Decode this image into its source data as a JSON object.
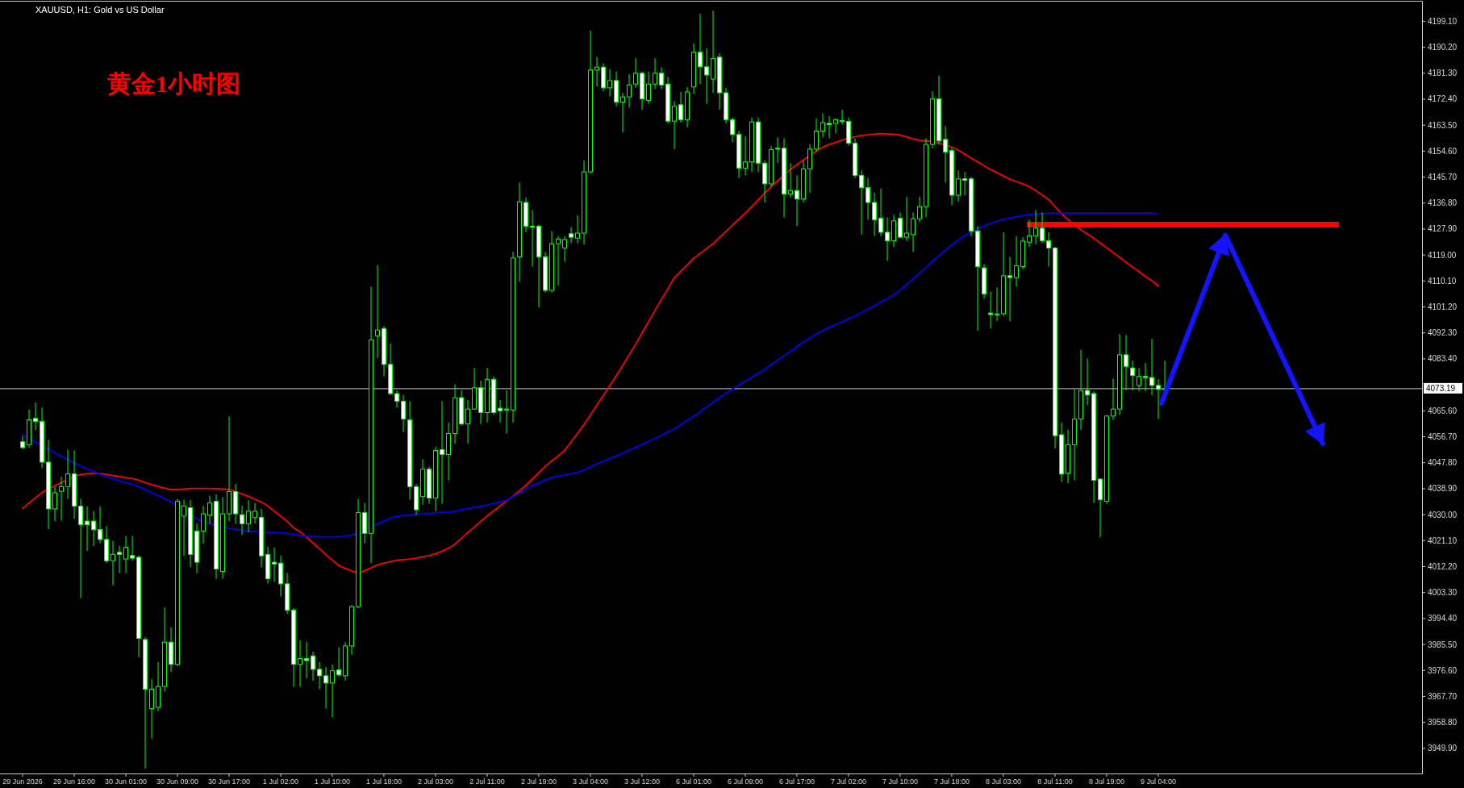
{
  "chart_data": {
    "type": "candlestick",
    "title": "黄金1小时图",
    "subtitle": "XAUUSD, H1:  Gold vs US Dollar",
    "categories": [
      "29 Jun 2026",
      null,
      null,
      null,
      null,
      null,
      null,
      null,
      "29 Jun 16:00",
      null,
      null,
      null,
      null,
      null,
      null,
      null,
      "30 Jun 01:00",
      null,
      null,
      null,
      null,
      null,
      null,
      null,
      "30 Jun 09:00",
      null,
      null,
      null,
      null,
      null,
      null,
      null,
      "30 Jun 17:00",
      null,
      null,
      null,
      null,
      null,
      null,
      null,
      "1 Jul 02:00",
      null,
      null,
      null,
      null,
      null,
      null,
      null,
      "1 Jul 10:00",
      null,
      null,
      null,
      null,
      null,
      null,
      null,
      "1 Jul 18:00",
      null,
      null,
      null,
      null,
      null,
      null,
      null,
      "2 Jul 03:00",
      null,
      null,
      null,
      null,
      null,
      null,
      null,
      "2 Jul 11:00",
      null,
      null,
      null,
      null,
      null,
      null,
      null,
      "2 Jul 19:00",
      null,
      null,
      null,
      null,
      null,
      null,
      null,
      "3 Jul 04:00",
      null,
      null,
      null,
      null,
      null,
      null,
      null,
      "3 Jul 12:00",
      null,
      null,
      null,
      null,
      null,
      null,
      null,
      "6 Jul 01:00",
      null,
      null,
      null,
      null,
      null,
      null,
      null,
      "6 Jul 09:00",
      null,
      null,
      null,
      null,
      null,
      null,
      null,
      "6 Jul 17:00",
      null,
      null,
      null,
      null,
      null,
      null,
      null,
      "7 Jul 02:00",
      null,
      null,
      null,
      null,
      null,
      null,
      null,
      "7 Jul 10:00",
      null,
      null,
      null,
      null,
      null,
      null,
      null,
      "7 Jul 18:00",
      null,
      null,
      null,
      null,
      null,
      null,
      null,
      "8 Jul 03:00",
      null,
      null,
      null,
      null,
      null,
      null,
      null,
      "8 Jul 11:00",
      null,
      null,
      null,
      null,
      null,
      null,
      null,
      "8 Jul 19:00",
      null,
      null,
      null,
      null,
      null,
      null,
      null,
      "9 Jul 04:00",
      null
    ],
    "ohlc": [
      [
        4055,
        4057,
        4052.5,
        4053
      ],
      [
        4054,
        4066,
        4053,
        4062.5
      ],
      [
        4063,
        4068.5,
        4059,
        4062
      ],
      [
        4062,
        4066.7,
        4046,
        4048
      ],
      [
        4048,
        4055.7,
        4025,
        4032
      ],
      [
        4032,
        4039.6,
        4027.8,
        4037.5
      ],
      [
        4038,
        4043,
        4028,
        4039.6
      ],
      [
        4039.6,
        4052.3,
        4035.4,
        4044
      ],
      [
        4044,
        4052,
        4028.6,
        4032.9
      ],
      [
        4032.9,
        4035.4,
        4001.5,
        4026.6
      ],
      [
        4027.8,
        4032.9,
        4017.6,
        4026.6
      ],
      [
        4027.8,
        4031.2,
        4019.3,
        4024.9
      ],
      [
        4024.9,
        4032.9,
        4020.2,
        4021.5
      ],
      [
        4021.5,
        4026.1,
        4013.4,
        4014.2
      ],
      [
        4014.2,
        4021,
        4005.8,
        4016.4
      ],
      [
        4017.1,
        4019.3,
        4010,
        4016.4
      ],
      [
        4014.8,
        4022.7,
        4010,
        4018.8
      ],
      [
        4016,
        4022.7,
        4014.3,
        4015.1
      ],
      [
        4015.4,
        4016,
        3981.2,
        3987.6
      ],
      [
        3987.2,
        3988,
        3943,
        3970.2
      ],
      [
        3963.5,
        3973.6,
        3953.3,
        3970.2
      ],
      [
        3964,
        3979.5,
        3962.6,
        3971.1
      ],
      [
        3971.1,
        3998.2,
        3969.4,
        3986.3
      ],
      [
        3986.3,
        3991.4,
        3976.1,
        3978.7
      ],
      [
        3978.7,
        4035.4,
        3978,
        4034.6
      ],
      [
        4029.5,
        4035.1,
        4015.9,
        4033
      ],
      [
        4032.4,
        4035,
        4012,
        4016.4
      ],
      [
        4024.4,
        4027,
        4010,
        4013.7
      ],
      [
        4024.4,
        4033,
        4020,
        4030.3
      ],
      [
        4029.8,
        4036.5,
        4027,
        4034
      ],
      [
        4034.6,
        4037,
        4008,
        4011.4
      ],
      [
        4010.5,
        4036,
        4008,
        4030.3
      ],
      [
        4030.3,
        4063.7,
        4027.8,
        4037.9
      ],
      [
        4037.9,
        4040.5,
        4027,
        4030.3
      ],
      [
        4030,
        4033,
        4023,
        4026.9
      ],
      [
        4026.9,
        4035,
        4024,
        4031.2
      ],
      [
        4029,
        4034,
        4027,
        4031.2
      ],
      [
        4029.1,
        4032,
        4012,
        4015.9
      ],
      [
        4016.4,
        4019,
        4006.4,
        4008
      ],
      [
        4013.7,
        4018.8,
        4007,
        4013.1
      ],
      [
        4013.4,
        4016,
        4002,
        4006.3
      ],
      [
        4006.3,
        4010,
        3996,
        3997.3
      ],
      [
        3997.3,
        3998,
        3971,
        3978.7
      ],
      [
        3978.7,
        3987,
        3971,
        3980.7
      ],
      [
        3980.7,
        3986.3,
        3974,
        3980
      ],
      [
        3981.6,
        3983,
        3973.1,
        3977
      ],
      [
        3977,
        3979.5,
        3970.2,
        3974.8
      ],
      [
        3974.8,
        3977.8,
        3963.5,
        3972.3
      ],
      [
        3972.3,
        3978.7,
        3960.6,
        3976.5
      ],
      [
        3976.8,
        3984.6,
        3974.5,
        3975.1
      ],
      [
        3974.8,
        3986.3,
        3973.1,
        3985
      ],
      [
        3985,
        3999,
        3982,
        3998.5
      ],
      [
        3998.5,
        4035.4,
        3998,
        4030.7
      ],
      [
        4030.7,
        4034,
        4020.2,
        4023.6
      ],
      [
        4023.6,
        4108.2,
        4013.4,
        4089.9
      ],
      [
        4091.3,
        4115.5,
        4083.7,
        4093.3
      ],
      [
        4093.8,
        4094.6,
        4077.4,
        4081.5
      ],
      [
        4081.5,
        4088.7,
        4071,
        4071.5
      ],
      [
        4071.5,
        4072.6,
        4066.7,
        4068.9
      ],
      [
        4068.9,
        4071,
        4058.3,
        4062.8
      ],
      [
        4062.5,
        4068.9,
        4035.1,
        4039.6
      ],
      [
        4039.6,
        4040.5,
        4030,
        4031.7
      ],
      [
        4036.2,
        4049,
        4033.4,
        4045.6
      ],
      [
        4045.6,
        4046.4,
        4033.7,
        4035.7
      ],
      [
        4035.7,
        4053.2,
        4031.2,
        4052
      ],
      [
        4052.3,
        4068.9,
        4033.7,
        4050.6
      ],
      [
        4050.6,
        4061.6,
        4041.8,
        4057.8
      ],
      [
        4057.8,
        4074.7,
        4054.4,
        4070.1
      ],
      [
        4070.1,
        4072.7,
        4060.5,
        4061.1
      ],
      [
        4061.1,
        4069.3,
        4054.4,
        4066.2
      ],
      [
        4066.2,
        4080.3,
        4065.9,
        4073.5
      ],
      [
        4073.5,
        4076,
        4061.1,
        4065
      ],
      [
        4065,
        4080.3,
        4061.6,
        4076.4
      ],
      [
        4076.4,
        4077.4,
        4064.2,
        4065
      ],
      [
        4066.5,
        4069.3,
        4061.6,
        4065.6
      ],
      [
        4066.2,
        4072.7,
        4057.8,
        4065.9
      ],
      [
        4065.9,
        4120.1,
        4061.6,
        4118
      ],
      [
        4118.4,
        4143.8,
        4109.9,
        4137.3
      ],
      [
        4137,
        4138.7,
        4126.8,
        4128.9
      ],
      [
        4128.9,
        4134.4,
        4115,
        4128.5
      ],
      [
        4128.9,
        4129.4,
        4101.1,
        4118.4
      ],
      [
        4118.4,
        4120.1,
        4106.2,
        4106.9
      ],
      [
        4106.9,
        4127.2,
        4106.2,
        4122.9
      ],
      [
        4122.9,
        4125.5,
        4108.5,
        4124.5
      ],
      [
        4121.4,
        4125.5,
        4116.7,
        4124.3
      ],
      [
        4126.3,
        4128.5,
        4123.1,
        4125.1
      ],
      [
        4124.8,
        4132.6,
        4123.1,
        4126.5
      ],
      [
        4126.5,
        4151.4,
        4122.6,
        4147.5
      ],
      [
        4147.5,
        4195.9,
        4146.8,
        4182.4
      ],
      [
        4182.4,
        4186.9,
        4176.8,
        4183.4
      ],
      [
        4183.4,
        4184.7,
        4175.1,
        4176.3
      ],
      [
        4176.3,
        4182.7,
        4173.4,
        4178.8
      ],
      [
        4178.8,
        4181.9,
        4170,
        4171.4
      ],
      [
        4171.4,
        4174.6,
        4161,
        4173.2
      ],
      [
        4173.2,
        4181,
        4169.5,
        4177.3
      ],
      [
        4177.6,
        4186.4,
        4176.3,
        4181.3
      ],
      [
        4181.3,
        4181.9,
        4168.8,
        4172.5
      ],
      [
        4172,
        4181.9,
        4170.8,
        4177.6
      ],
      [
        4177.6,
        4186.4,
        4175.9,
        4181.3
      ],
      [
        4181.3,
        4183.4,
        4175.9,
        4177.3
      ],
      [
        4177.6,
        4180.1,
        4164.1,
        4164.9
      ],
      [
        4164.9,
        4171.7,
        4155.3,
        4170
      ],
      [
        4170.5,
        4174.9,
        4164.4,
        4165.4
      ],
      [
        4165.4,
        4176.6,
        4162.7,
        4174.9
      ],
      [
        4176.6,
        4191.5,
        4174.2,
        4188.5
      ],
      [
        4188.5,
        4201.7,
        4177.6,
        4183.5
      ],
      [
        4183.5,
        4189.8,
        4170.8,
        4180.7
      ],
      [
        4179.3,
        4202.7,
        4174.6,
        4186.4
      ],
      [
        4186.8,
        4188.1,
        4168.8,
        4174.6
      ],
      [
        4174.6,
        4176.3,
        4164.1,
        4165.4
      ],
      [
        4165.4,
        4166.1,
        4157.6,
        4160.3
      ],
      [
        4160.3,
        4161.5,
        4145.4,
        4148.8
      ],
      [
        4148.8,
        4159.8,
        4146.3,
        4150.9
      ],
      [
        4150.9,
        4166.1,
        4147.5,
        4164.6
      ],
      [
        4164.6,
        4166.1,
        4147.5,
        4150.5
      ],
      [
        4150.5,
        4151.4,
        4137,
        4143.4
      ],
      [
        4143.4,
        4156.3,
        4142.4,
        4155.1
      ],
      [
        4155.6,
        4159.3,
        4150.5,
        4155.3
      ],
      [
        4155.6,
        4159,
        4131.9,
        4139.9
      ],
      [
        4139.9,
        4150.5,
        4138.7,
        4141.1
      ],
      [
        4141.1,
        4146.3,
        4128.9,
        4138.2
      ],
      [
        4138.2,
        4151.4,
        4137,
        4148.5
      ],
      [
        4148.5,
        4157,
        4140.4,
        4155.3
      ],
      [
        4155.3,
        4165.8,
        4154.3,
        4161.5
      ],
      [
        4161.5,
        4167.5,
        4159.3,
        4164.4
      ],
      [
        4164.1,
        4166.6,
        4159,
        4163.7
      ],
      [
        4164.1,
        4165.8,
        4160.7,
        4165.4
      ],
      [
        4165.1,
        4168.8,
        4163.7,
        4164.8
      ],
      [
        4164.8,
        4166.1,
        4156.5,
        4157.3
      ],
      [
        4157.3,
        4159,
        4145.4,
        4146.3
      ],
      [
        4146.3,
        4148,
        4126,
        4142.1
      ],
      [
        4142.1,
        4145.4,
        4131.1,
        4137
      ],
      [
        4137,
        4140.4,
        4125.5,
        4131.1
      ],
      [
        4131.6,
        4141.7,
        4125.5,
        4126.8
      ],
      [
        4126.8,
        4131.9,
        4117,
        4123.9
      ],
      [
        4123.9,
        4132.8,
        4121.7,
        4130.7
      ],
      [
        4131.6,
        4133.6,
        4124.8,
        4125.1
      ],
      [
        4125.1,
        4139,
        4123.8,
        4126.5
      ],
      [
        4126,
        4133.6,
        4120.1,
        4131.4
      ],
      [
        4131.4,
        4139,
        4130.2,
        4135.6
      ],
      [
        4135.6,
        4159,
        4131.9,
        4156.9
      ],
      [
        4156.9,
        4175.1,
        4155.6,
        4172.5
      ],
      [
        4172.5,
        4180.5,
        4156.8,
        4158.1
      ],
      [
        4158.6,
        4163.2,
        4143.8,
        4154.3
      ],
      [
        4154.8,
        4155.6,
        4136.1,
        4139.5
      ],
      [
        4139.5,
        4148,
        4137.3,
        4145.1
      ],
      [
        4145.1,
        4147.5,
        4139.5,
        4144.6
      ],
      [
        4145.1,
        4145.8,
        4125.5,
        4127.2
      ],
      [
        4127.2,
        4128.9,
        4093,
        4115
      ],
      [
        4114.6,
        4115.8,
        4104,
        4105.7
      ],
      [
        4099.1,
        4106.5,
        4093.8,
        4098.6
      ],
      [
        4098.8,
        4107.9,
        4096.4,
        4098.7
      ],
      [
        4098.9,
        4126.8,
        4098,
        4111.9
      ],
      [
        4111.9,
        4118.4,
        4096.4,
        4111.3
      ],
      [
        4111.3,
        4125.5,
        4108.2,
        4115.3
      ],
      [
        4115,
        4125.1,
        4114.1,
        4123.8
      ],
      [
        4123.4,
        4131.1,
        4121.7,
        4125.6
      ],
      [
        4125.6,
        4134.4,
        4122.6,
        4128.2
      ],
      [
        4128.2,
        4133.6,
        4123.1,
        4123.9
      ],
      [
        4123.9,
        4126.8,
        4115,
        4121.4
      ],
      [
        4121.4,
        4121.8,
        4052.7,
        4057.1
      ],
      [
        4057.4,
        4061.6,
        4041.3,
        4043.9
      ],
      [
        4044.2,
        4059.1,
        4040.8,
        4054
      ],
      [
        4054,
        4073,
        4041.8,
        4062.8
      ],
      [
        4062.8,
        4086.5,
        4059.1,
        4072.6
      ],
      [
        4072.6,
        4083.5,
        4067.6,
        4071
      ],
      [
        4071.5,
        4072.3,
        4034,
        4041.8
      ],
      [
        4042.2,
        4042.5,
        4022.2,
        4035.1
      ],
      [
        4034.6,
        4064.2,
        4033.7,
        4063.8
      ],
      [
        4063.8,
        4076.7,
        4062.5,
        4066.2
      ],
      [
        4066.2,
        4091.9,
        4064.2,
        4084.8
      ],
      [
        4084.8,
        4091.6,
        4072.6,
        4080.8
      ],
      [
        4080.3,
        4082.8,
        4072.6,
        4077.7
      ],
      [
        4074.3,
        4080.3,
        4072.3,
        4077.4
      ],
      [
        4077.4,
        4082,
        4072.3,
        4077
      ],
      [
        4077,
        4090.3,
        4071,
        4074.3
      ],
      [
        4074.3,
        4076.4,
        4062.8,
        4073
      ],
      [
        4073,
        4082.8,
        4072.7,
        4073.19
      ]
    ],
    "series": [
      {
        "type": "line",
        "color": "#ff0000",
        "values": [
          4032.2,
          4034,
          4035.8,
          4037.6,
          4038.8,
          4039.9,
          4041,
          4042,
          4043,
          4043.8,
          4044,
          4044.1,
          4044.1,
          4043.8,
          4043.4,
          4043.1,
          4042.7,
          4042.4,
          4041.8,
          4041,
          4040.3,
          4039.7,
          4039.1,
          4038.6,
          4038.6,
          4038.8,
          4039,
          4039,
          4039,
          4039,
          4038.9,
          4038.8,
          4038.7,
          4037.9,
          4037.1,
          4036.3,
          4035.3,
          4034.3,
          4033,
          4031.2,
          4029.5,
          4027.7,
          4025.5,
          4024.2,
          4022.3,
          4020.3,
          4018.3,
          4016.3,
          4014.4,
          4012.6,
          4011.6,
          4010.7,
          4009.9,
          4010.8,
          4011.8,
          4012.8,
          4013.4,
          4013.9,
          4014.4,
          4014.6,
          4014.8,
          4015.1,
          4015.6,
          4016,
          4016.6,
          4017.5,
          4018.5,
          4019.9,
          4021.9,
          4023.9,
          4025.8,
          4027.7,
          4029.6,
          4031.3,
          4033,
          4034.7,
          4036.4,
          4038.2,
          4040,
          4042.2,
          4044.4,
          4046.6,
          4048.4,
          4050.1,
          4052.1,
          4055,
          4057.9,
          4060.9,
          4064.2,
          4067.6,
          4070.9,
          4074.2,
          4077.6,
          4081.1,
          4084.8,
          4088.4,
          4092.3,
          4096.1,
          4100,
          4103.8,
          4107.4,
          4111.2,
          4113.4,
          4115.6,
          4117.9,
          4119.5,
          4121.2,
          4122.9,
          4125,
          4127.1,
          4129.2,
          4131.3,
          4133.4,
          4135.6,
          4137.9,
          4140.2,
          4142.4,
          4144.4,
          4146.4,
          4148.3,
          4150,
          4151.6,
          4153.1,
          4154.6,
          4156,
          4156.9,
          4157.6,
          4158.4,
          4159,
          4159.5,
          4160,
          4160.2,
          4160.4,
          4160.6,
          4160.5,
          4160.4,
          4160.1,
          4159.5,
          4158.8,
          4158.3,
          4158.1,
          4157.9,
          4157.4,
          4156.7,
          4156,
          4154.9,
          4153.6,
          4152.2,
          4151,
          4149.6,
          4148.3,
          4147.2,
          4146.1,
          4145,
          4144.2,
          4143.4,
          4142.5,
          4141.1,
          4139.6,
          4138,
          4135.6,
          4133.2,
          4131.1,
          4129.4,
          4127.7,
          4126.2,
          4124.7,
          4123.1,
          4121.5,
          4119.9,
          4118.3,
          4116.5,
          4114.9,
          4113.3,
          4111.6,
          4110.2,
          4108.4,
          null
        ]
      },
      {
        "type": "line",
        "color": "#0000ff",
        "values": [
          4057.5,
          4056.1,
          4054.9,
          4053.7,
          4052.5,
          4051.2,
          4050,
          4048.9,
          4047.8,
          4046.7,
          4045.7,
          4044.8,
          4043.9,
          4043.1,
          4042.4,
          4041.6,
          4041,
          4040.4,
          4039.6,
          4038.6,
          4037.5,
          4036.6,
          4035.5,
          4034.4,
          4033,
          4031.6,
          4030.1,
          4028.6,
          4027.5,
          4026.9,
          4026.4,
          4025.9,
          4025.3,
          4025,
          4024.6,
          4024.3,
          4024.2,
          4024.1,
          4024,
          4023.9,
          4023.8,
          4023.6,
          4023.3,
          4022.9,
          4022.6,
          4022.5,
          4022.4,
          4022.4,
          4022.4,
          4022.4,
          4022.7,
          4023.1,
          4023.5,
          4024.6,
          4025.7,
          4026.8,
          4027.8,
          4028.8,
          4029.4,
          4029.7,
          4029.9,
          4030.1,
          4030.3,
          4030.5,
          4030.7,
          4030.8,
          4030.9,
          4031.2,
          4031.7,
          4032.1,
          4032.5,
          4032.8,
          4033.3,
          4033.8,
          4034.4,
          4034.9,
          4036.2,
          4037.5,
          4038.8,
          4039.9,
          4040.9,
          4041.9,
          4042.7,
          4043.2,
          4043.6,
          4044.1,
          4044.5,
          4045.3,
          4046.4,
          4047.4,
          4048.3,
          4049.2,
          4050.1,
          4051.1,
          4052.1,
          4053.1,
          4054.1,
          4055.2,
          4056.1,
          4057.2,
          4058.4,
          4059.4,
          4060.9,
          4062.3,
          4063.7,
          4065.3,
          4066.9,
          4068.5,
          4070.1,
          4071.6,
          4073.1,
          4074.4,
          4075.8,
          4077.1,
          4078.5,
          4079.8,
          4081.4,
          4083,
          4084.5,
          4086.1,
          4087.6,
          4089.1,
          4090.6,
          4092,
          4093.1,
          4094.2,
          4095.2,
          4096.1,
          4097.1,
          4098.1,
          4099.2,
          4100.4,
          4101.6,
          4102.9,
          4104.1,
          4105.3,
          4107,
          4108.9,
          4110.8,
          4112.8,
          4114.8,
          4116.9,
          4118.7,
          4120.6,
          4122.5,
          4124,
          4125.6,
          4127,
          4128,
          4129,
          4129.9,
          4130.6,
          4131.2,
          4131.7,
          4132.1,
          4132.5,
          4132.8,
          4133,
          4133.2,
          4133.4,
          4133.4,
          4133.4,
          4133.4,
          4133.4,
          4133.4,
          4133.4,
          4133.4,
          4133.4,
          4133.4,
          4133.4,
          4133.4,
          4133.4,
          4133.4,
          4133.4,
          4133.4,
          4133.4,
          4133,
          null
        ]
      }
    ],
    "ylim": [
      3941.3,
      4206.4
    ],
    "yticks": [
      {
        "value": 4199.1,
        "label": "4199.10"
      },
      {
        "value": 4190.2,
        "label": "4190.20"
      },
      {
        "value": 4181.3,
        "label": "4181.30"
      },
      {
        "value": 4172.4,
        "label": "4172.40"
      },
      {
        "value": 4163.5,
        "label": "4163.50"
      },
      {
        "value": 4154.6,
        "label": "4154.60"
      },
      {
        "value": 4145.7,
        "label": "4145.70"
      },
      {
        "value": 4136.8,
        "label": "4136.80"
      },
      {
        "value": 4127.9,
        "label": "4127.90"
      },
      {
        "value": 4119.0,
        "label": "4119.00"
      },
      {
        "value": 4110.1,
        "label": "4110.10"
      },
      {
        "value": 4101.2,
        "label": "4101.20"
      },
      {
        "value": 4092.3,
        "label": "4092.30"
      },
      {
        "value": 4083.4,
        "label": "4083.40"
      },
      {
        "value": 4065.6,
        "label": "4065.60"
      },
      {
        "value": 4056.7,
        "label": "4056.70"
      },
      {
        "value": 4047.8,
        "label": "4047.80"
      },
      {
        "value": 4038.9,
        "label": "4038.90"
      },
      {
        "value": 4030.0,
        "label": "4030.00"
      },
      {
        "value": 4021.1,
        "label": "4021.10"
      },
      {
        "value": 4012.2,
        "label": "4012.20"
      },
      {
        "value": 4003.3,
        "label": "4003.30"
      },
      {
        "value": 3994.4,
        "label": "3994.40"
      },
      {
        "value": 3985.5,
        "label": "3985.50"
      },
      {
        "value": 3976.6,
        "label": "3976.60"
      },
      {
        "value": 3967.7,
        "label": "3967.70"
      },
      {
        "value": 3958.8,
        "label": "3958.80"
      },
      {
        "value": 3949.9,
        "label": "3949.90"
      }
    ],
    "ref_lines": [
      {
        "axis": "y",
        "value": 4129.4,
        "color": "#ff0000"
      },
      {
        "axis": "y",
        "value": 4073.19,
        "label": "4073.19",
        "color": "#c8c8c8"
      }
    ]
  }
}
